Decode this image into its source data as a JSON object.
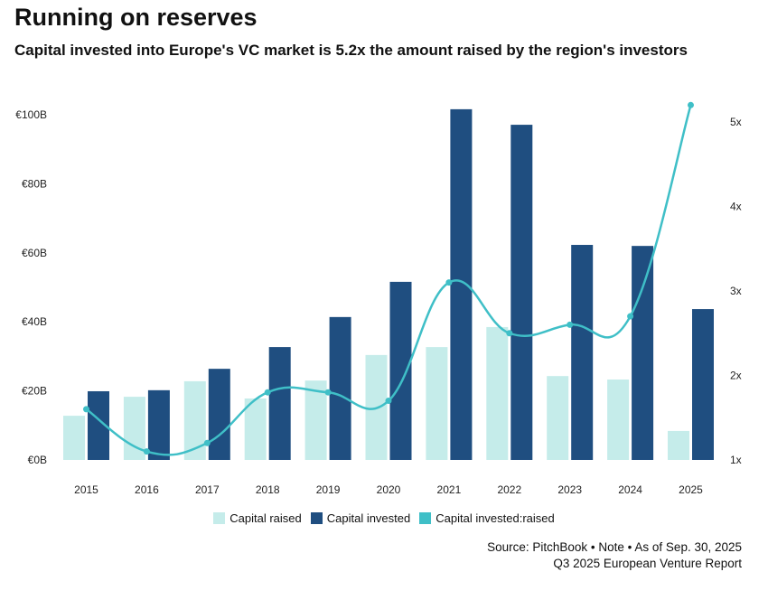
{
  "title": "Running on reserves",
  "subtitle": "Capital invested into Europe's VC market is 5.2x the amount raised by the region's investors",
  "source_line1": "Source: PitchBook • Note • As of Sep. 30, 2025",
  "source_line2": "Q3 2025 European Venture Report",
  "colors": {
    "raised": "#c5ecea",
    "invested": "#1f4e80",
    "ratio": "#3fbfc7"
  },
  "chart_data": {
    "type": "bar",
    "categories": [
      "2015",
      "2016",
      "2017",
      "2018",
      "2019",
      "2020",
      "2021",
      "2022",
      "2023",
      "2024",
      "2025"
    ],
    "series": [
      {
        "name": "Capital raised",
        "axis": "left",
        "values": [
          12.8,
          18.3,
          22.8,
          17.8,
          23.0,
          30.4,
          32.7,
          38.5,
          24.3,
          23.3,
          8.4
        ]
      },
      {
        "name": "Capital invested",
        "axis": "left",
        "values": [
          19.9,
          20.2,
          26.4,
          32.7,
          41.4,
          51.6,
          101.6,
          97.1,
          62.3,
          62.0,
          43.7
        ]
      },
      {
        "name": "Capital invested:raised",
        "axis": "right",
        "type": "line",
        "values": [
          1.6,
          1.1,
          1.2,
          1.8,
          1.8,
          1.7,
          3.1,
          2.5,
          2.6,
          2.7,
          5.2
        ]
      }
    ],
    "left_axis": {
      "ylim": [
        0,
        100
      ],
      "ticks": [
        0,
        20,
        40,
        60,
        80,
        100
      ],
      "tick_labels": [
        "€0B",
        "€20B",
        "€40B",
        "€60B",
        "€80B",
        "€100B"
      ]
    },
    "right_axis": {
      "ylim": [
        1,
        5
      ],
      "ticks": [
        1,
        2,
        3,
        4,
        5
      ],
      "tick_labels": [
        "1x",
        "2x",
        "3x",
        "4x",
        "5x"
      ]
    },
    "grid": false,
    "legend_position": "bottom"
  }
}
